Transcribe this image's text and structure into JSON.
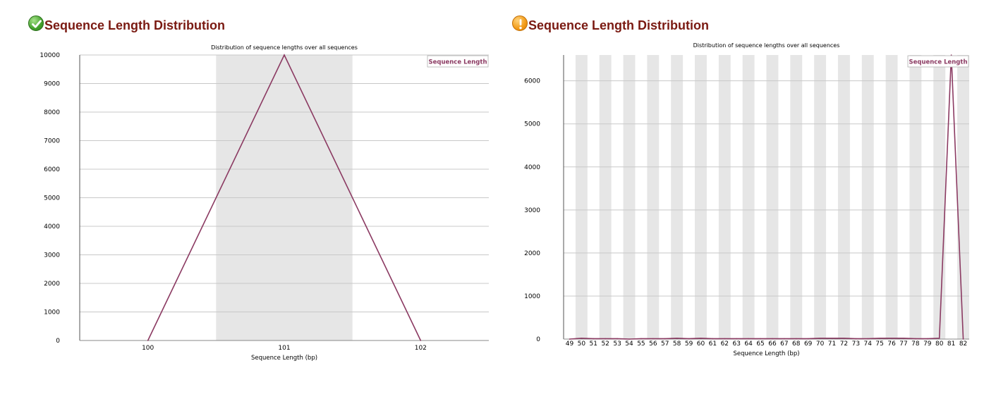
{
  "panels": [
    {
      "title": "Sequence Length Distribution",
      "status_icon": "check-icon",
      "status_color": "#43a12c",
      "chart_data": {
        "type": "line",
        "title": "Distribution of sequence lengths over all sequences",
        "xlabel": "Sequence Length (bp)",
        "ylabel": "",
        "categories": [
          "100",
          "101",
          "102"
        ],
        "series": [
          {
            "name": "Sequence Length",
            "values": [
              0,
              10000,
              0
            ]
          }
        ],
        "ylim": [
          0,
          10000
        ],
        "yticks": [
          0,
          1000,
          2000,
          3000,
          4000,
          5000,
          6000,
          7000,
          8000,
          9000,
          10000
        ],
        "grid": true,
        "legend": "top-right",
        "series_color": "#8b3a62"
      }
    },
    {
      "title": "Sequence Length Distribution",
      "status_icon": "warning-icon",
      "status_color": "#f29a16",
      "chart_data": {
        "type": "line",
        "title": "Distribution of sequence lengths over all sequences",
        "xlabel": "Sequence Length (bp)",
        "ylabel": "",
        "categories": [
          "49",
          "50",
          "51",
          "52",
          "53",
          "54",
          "55",
          "56",
          "57",
          "58",
          "59",
          "60",
          "61",
          "62",
          "63",
          "64",
          "65",
          "66",
          "67",
          "68",
          "69",
          "70",
          "71",
          "72",
          "73",
          "74",
          "75",
          "76",
          "77",
          "78",
          "79",
          "80",
          "81",
          "82"
        ],
        "series": [
          {
            "name": "Sequence Length",
            "values": [
              0,
              20,
              10,
              10,
              10,
              0,
              10,
              10,
              10,
              20,
              10,
              20,
              10,
              10,
              10,
              10,
              10,
              10,
              10,
              10,
              10,
              20,
              20,
              20,
              10,
              10,
              20,
              20,
              20,
              10,
              10,
              20,
              6600,
              0
            ]
          }
        ],
        "ylim": [
          0,
          6600
        ],
        "yticks": [
          0,
          1000,
          2000,
          3000,
          4000,
          5000,
          6000
        ],
        "grid": true,
        "legend": "top-right",
        "series_color": "#8b3a62"
      }
    }
  ]
}
